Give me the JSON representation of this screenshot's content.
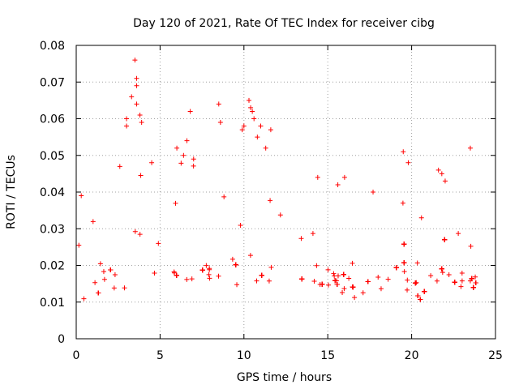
{
  "chart_data": {
    "type": "scatter",
    "title": "Day 120 of 2021, Rate Of TEC Index for receiver cibg",
    "xlabel": "GPS time / hours",
    "ylabel": "ROTI / TECUs",
    "xlim": [
      0,
      25
    ],
    "ylim": [
      0,
      0.08
    ],
    "x_ticks": [
      0,
      5,
      10,
      15,
      20,
      25
    ],
    "x_tick_labels": [
      "0",
      "5",
      "10",
      "15",
      "20",
      "25"
    ],
    "y_ticks": [
      0,
      0.01,
      0.02,
      0.03,
      0.04,
      0.05,
      0.06,
      0.07,
      0.08
    ],
    "y_tick_labels": [
      "0",
      "0.01",
      "0.02",
      "0.03",
      "0.04",
      "0.05",
      "0.06",
      "0.07",
      "0.08"
    ],
    "grid": true,
    "marker": "+",
    "color": "#ff0000",
    "series": [
      {
        "name": "ROTI",
        "data_gap_hours": [
          12.8,
          13.4
        ],
        "band_center_by_hour": [
          [
            0,
            0.015
          ],
          [
            2,
            0.016
          ],
          [
            4,
            0.017
          ],
          [
            6,
            0.018
          ],
          [
            8,
            0.018
          ],
          [
            10,
            0.019
          ],
          [
            12.8,
            0.017
          ],
          [
            13.4,
            0.016
          ],
          [
            16,
            0.015
          ],
          [
            18,
            0.015
          ],
          [
            20,
            0.015
          ],
          [
            22,
            0.016
          ],
          [
            23.9,
            0.015
          ]
        ],
        "x": [
          3.5,
          3.6,
          3.6,
          3.3,
          3.6,
          3.0,
          3.0,
          3.8,
          3.9,
          6.8,
          6.6,
          6.0,
          6.4,
          8.5,
          8.6,
          10.3,
          10.4,
          10.5,
          10.0,
          9.9,
          10.6,
          11.0,
          10.8,
          11.6,
          11.3,
          7.0,
          4.5,
          2.6,
          0.3,
          19.5,
          19.8,
          21.6,
          21.8,
          23.5,
          22.0,
          16.0,
          17.7,
          14.4,
          15.6
        ],
        "y": [
          0.076,
          0.071,
          0.069,
          0.066,
          0.064,
          0.06,
          0.058,
          0.061,
          0.059,
          0.062,
          0.054,
          0.052,
          0.05,
          0.064,
          0.059,
          0.065,
          0.063,
          0.062,
          0.058,
          0.057,
          0.06,
          0.058,
          0.055,
          0.057,
          0.052,
          0.049,
          0.048,
          0.047,
          0.039,
          0.051,
          0.048,
          0.046,
          0.045,
          0.052,
          0.043,
          0.044,
          0.04,
          0.044,
          0.042
        ]
      }
    ]
  }
}
